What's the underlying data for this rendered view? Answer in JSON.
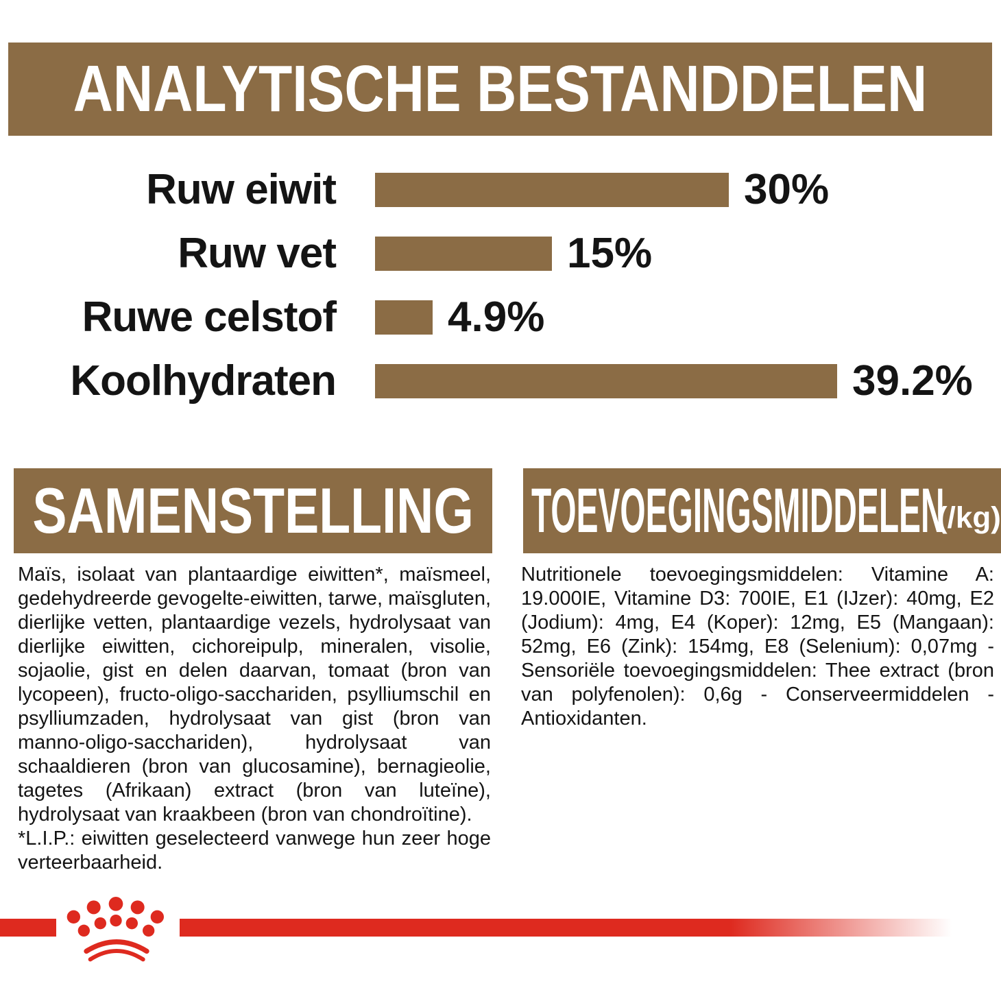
{
  "header": {
    "title": "ANALYTISCHE BESTANDDELEN"
  },
  "chart_data": {
    "type": "bar",
    "orientation": "horizontal",
    "title": "ANALYTISCHE BESTANDDELEN",
    "categories": [
      "Ruw eiwit",
      "Ruw vet",
      "Ruwe celstof",
      "Koolhydraten"
    ],
    "values": [
      30,
      15,
      4.9,
      39.2
    ],
    "value_labels": [
      "30%",
      "15%",
      "4.9%",
      "39.2%"
    ],
    "unit": "%",
    "xlim": [
      0,
      40
    ],
    "grid": false,
    "legend": "none",
    "bar_color": "#8B6C45"
  },
  "sections": {
    "samenstelling": {
      "title": "SAMENSTELLING",
      "ingredients": "Maïs, isolaat van plantaardige eiwitten*, maïsmeel, gedehydreerde gevogelte-eiwitten, tarwe, maïsgluten, dierlijke vetten, plantaardige vezels, hydrolysaat van dierlijke eiwitten, cichoreipulp, mineralen, visolie, sojaolie, gist en delen daarvan, tomaat (bron van lycopeen), fructo-oligo-sacchariden, psylliumschil en psylliumzaden, hydrolysaat van gist (bron van manno-oligo-sacchariden), hydrolysaat van schaaldieren (bron van glucosamine), bernagieolie, tagetes (Afrikaan) extract (bron van luteïne), hydrolysaat van kraakbeen (bron van chondroïtine).",
      "lip_note": "*L.I.P.: eiwitten geselecteerd vanwege hun zeer hoge verteerbaarheid."
    },
    "toevoegingsmiddelen": {
      "title": "TOEVOEGINGSMIDDELEN",
      "title_suffix": "(/kg)",
      "body": "Nutritionele toevoegingsmiddelen: Vitamine A: 19.000IE, Vitamine D3: 700IE, E1 (IJzer): 40mg, E2 (Jodium): 4mg, E4 (Koper): 12mg, E5 (Mangaan): 52mg, E6 (Zink): 154mg, E8 (Selenium): 0,07mg - Sensoriële toevoegingsmiddelen: Thee extract (bron van polyfenolen): 0,6g - Conserveermiddelen - Antioxidanten."
    }
  },
  "footer": {
    "logo_icon": "royal-canin-crown-logo"
  },
  "colors": {
    "band_brown": "#8B6C45",
    "accent_red": "#DE2A1F",
    "text_black": "#141414",
    "background": "#FFFFFF"
  }
}
